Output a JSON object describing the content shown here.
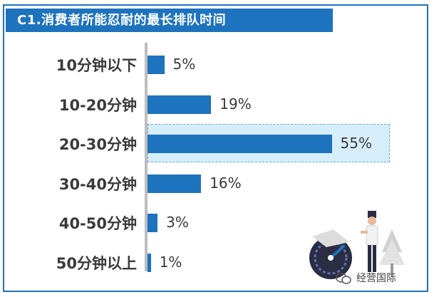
{
  "title": "C1.消费者所能忍耐的最长排队时间",
  "brand": "经营国际",
  "colors": {
    "accent": "#1e73be",
    "highlight": "#d6eefa",
    "axis": "#bdbdbd"
  },
  "chart_data": {
    "type": "bar",
    "orientation": "horizontal",
    "title": "C1.消费者所能忍耐的最长排队时间",
    "categories": [
      "10分钟以下",
      "10-20分钟",
      "20-30分钟",
      "30-40分钟",
      "40-50分钟",
      "50分钟以上"
    ],
    "values": [
      5,
      19,
      55,
      16,
      3,
      1
    ],
    "value_labels": [
      "5%",
      "19%",
      "55%",
      "16%",
      "3%",
      "1%"
    ],
    "unit": "%",
    "highlighted_category": "20-30分钟",
    "grid": false,
    "legend": "none"
  }
}
